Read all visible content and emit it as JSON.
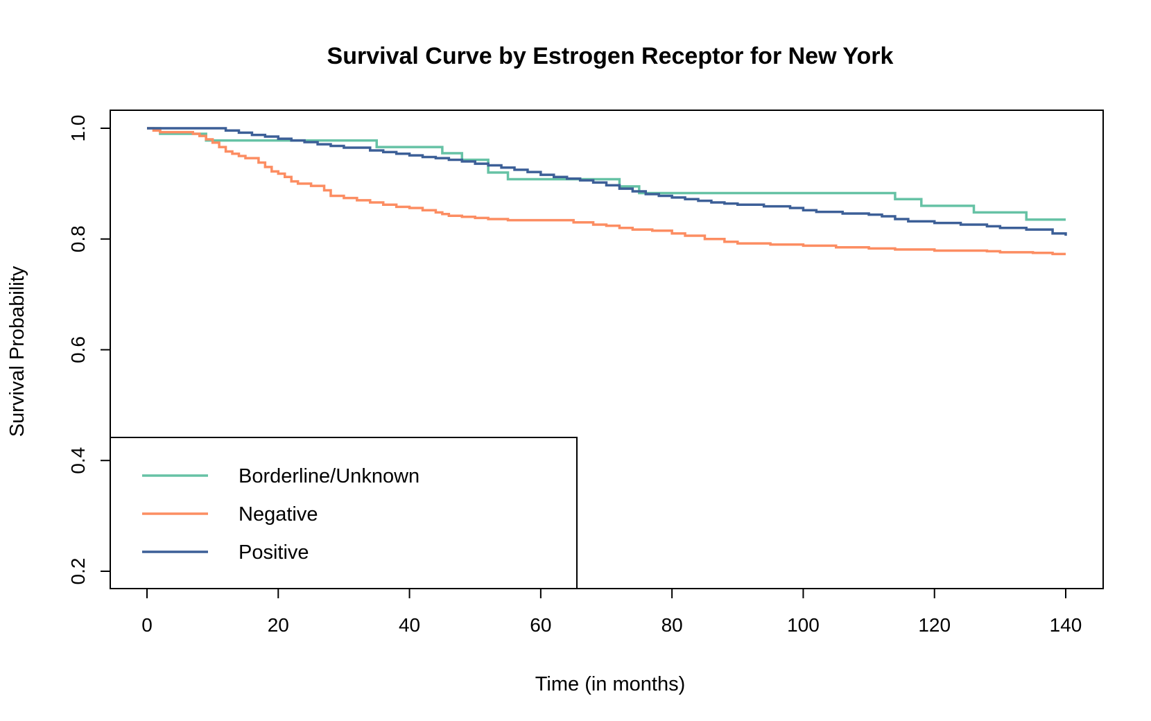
{
  "chart_data": {
    "type": "line",
    "subtype": "step",
    "title": "Survival Curve by Estrogen Receptor for New York",
    "xlabel": "Time (in months)",
    "ylabel": "Survival Probability",
    "xlim": [
      0,
      140
    ],
    "ylim": [
      0.2,
      1.0
    ],
    "x_ticks": [
      0,
      20,
      40,
      60,
      80,
      100,
      120,
      140
    ],
    "x_tick_labels": [
      "0",
      "20",
      "40",
      "60",
      "80",
      "100",
      "120",
      "140"
    ],
    "y_ticks": [
      0.2,
      0.4,
      0.6,
      0.8,
      1.0
    ],
    "y_tick_labels": [
      "0.2",
      "0.4",
      "0.6",
      "0.8",
      "1.0"
    ],
    "grid": false,
    "legend_position": "bottom-left",
    "series": [
      {
        "name": "Borderline/Unknown",
        "color": "#66c2a5",
        "x": [
          0,
          2,
          9,
          35,
          45,
          48,
          52,
          53,
          55,
          72,
          75,
          114,
          118,
          126,
          134,
          140
        ],
        "y": [
          1.0,
          0.99,
          0.978,
          0.966,
          0.955,
          0.943,
          0.92,
          0.92,
          0.908,
          0.895,
          0.883,
          0.872,
          0.86,
          0.848,
          0.835,
          0.835
        ]
      },
      {
        "name": "Negative",
        "color": "#fc8d62",
        "x": [
          0,
          1,
          2,
          7,
          8,
          9,
          10,
          11,
          12,
          13,
          14,
          15,
          17,
          18,
          19,
          20,
          21,
          22,
          23,
          25,
          27,
          28,
          30,
          32,
          34,
          36,
          38,
          40,
          42,
          44,
          45,
          46,
          48,
          50,
          52,
          55,
          60,
          65,
          68,
          70,
          72,
          74,
          77,
          80,
          82,
          85,
          88,
          90,
          95,
          100,
          105,
          110,
          114,
          120,
          128,
          130,
          135,
          138,
          140
        ],
        "y": [
          1.0,
          0.996,
          0.993,
          0.99,
          0.986,
          0.98,
          0.974,
          0.966,
          0.958,
          0.954,
          0.95,
          0.946,
          0.938,
          0.93,
          0.922,
          0.918,
          0.912,
          0.904,
          0.9,
          0.896,
          0.888,
          0.878,
          0.874,
          0.87,
          0.866,
          0.862,
          0.858,
          0.856,
          0.852,
          0.848,
          0.845,
          0.842,
          0.84,
          0.838,
          0.836,
          0.834,
          0.834,
          0.83,
          0.826,
          0.824,
          0.82,
          0.817,
          0.815,
          0.81,
          0.806,
          0.8,
          0.795,
          0.792,
          0.79,
          0.788,
          0.785,
          0.783,
          0.781,
          0.779,
          0.778,
          0.776,
          0.775,
          0.773,
          0.773
        ]
      },
      {
        "name": "Positive",
        "color": "#3c5f97",
        "x": [
          0,
          12,
          14,
          16,
          18,
          20,
          22,
          24,
          26,
          28,
          30,
          34,
          36,
          38,
          40,
          42,
          44,
          46,
          48,
          50,
          52,
          54,
          56,
          58,
          60,
          62,
          64,
          66,
          68,
          70,
          72,
          74,
          76,
          78,
          80,
          82,
          84,
          86,
          88,
          90,
          94,
          98,
          100,
          102,
          106,
          110,
          112,
          114,
          116,
          120,
          124,
          128,
          130,
          134,
          138,
          140
        ],
        "y": [
          1.0,
          0.996,
          0.992,
          0.988,
          0.985,
          0.981,
          0.978,
          0.975,
          0.971,
          0.968,
          0.965,
          0.96,
          0.957,
          0.954,
          0.951,
          0.948,
          0.946,
          0.943,
          0.94,
          0.936,
          0.933,
          0.929,
          0.925,
          0.921,
          0.916,
          0.912,
          0.909,
          0.906,
          0.902,
          0.897,
          0.891,
          0.886,
          0.881,
          0.878,
          0.875,
          0.872,
          0.869,
          0.866,
          0.864,
          0.862,
          0.859,
          0.856,
          0.852,
          0.849,
          0.846,
          0.844,
          0.841,
          0.836,
          0.832,
          0.829,
          0.826,
          0.823,
          0.82,
          0.817,
          0.81,
          0.806
        ]
      }
    ]
  }
}
